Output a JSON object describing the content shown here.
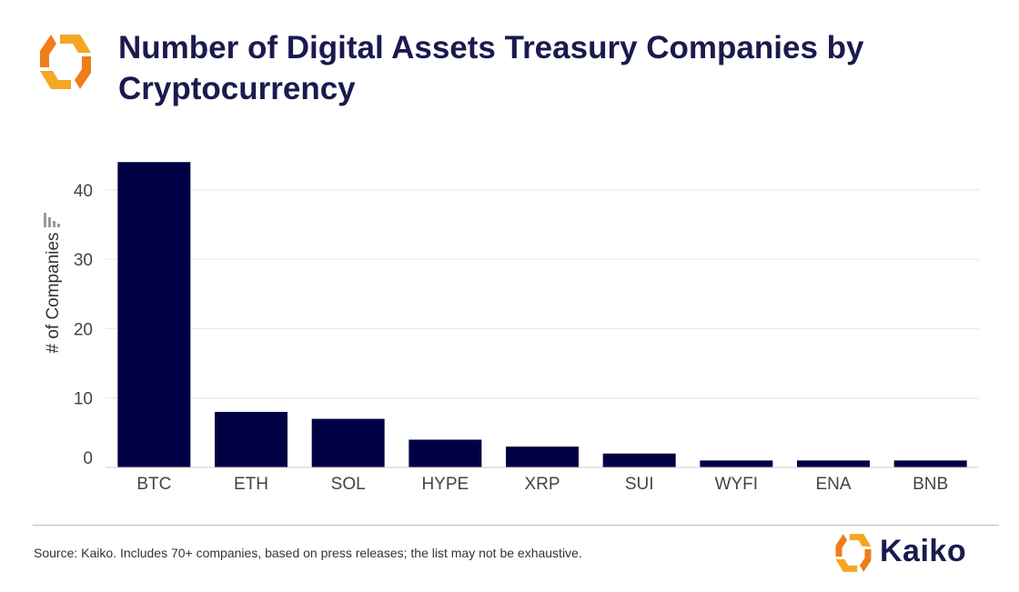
{
  "header": {
    "title": "Number of Digital Assets Treasury Companies by Cryptocurrency"
  },
  "colors": {
    "bar": "#000044",
    "title": "#1a1a4e",
    "logo_orange": "#f5a623",
    "logo_orange_dark": "#f07d1a",
    "grid": "#e6e6e6"
  },
  "chart_data": {
    "type": "bar",
    "categories": [
      "BTC",
      "ETH",
      "SOL",
      "HYPE",
      "XRP",
      "SUI",
      "WYFI",
      "ENA",
      "BNB"
    ],
    "values": [
      44,
      8,
      7,
      4,
      3,
      2,
      1,
      1,
      1
    ],
    "title": "Number of Digital Assets Treasury Companies by Cryptocurrency",
    "xlabel": "",
    "ylabel": "# of Companies",
    "ylim": [
      0,
      46
    ],
    "yticks": [
      0,
      10,
      20,
      30,
      40
    ],
    "grid": true,
    "legend": "none"
  },
  "footer": {
    "source": "Source: Kaiko.  Includes 70+ companies, based on press releases; the list may not be exhaustive.",
    "brand_name": "Kaiko",
    "logo_icon": "kaiko-logo-icon"
  }
}
